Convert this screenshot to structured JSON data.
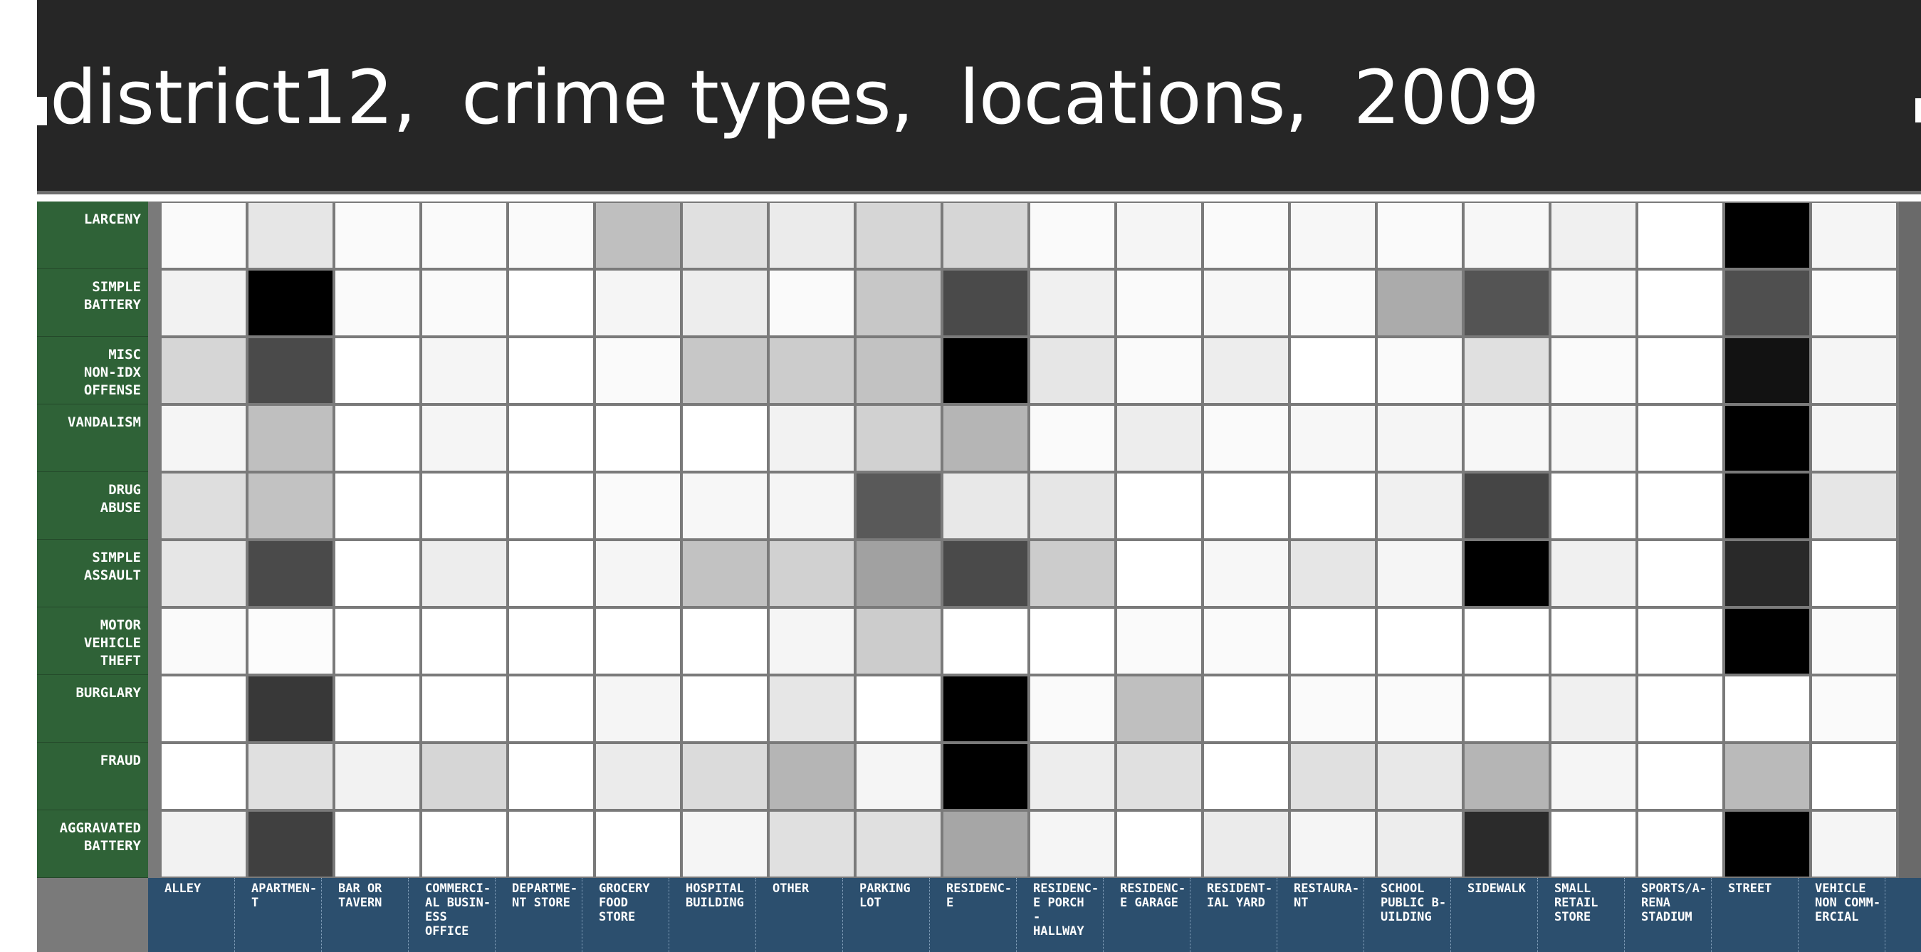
{
  "title": "district12,  crime types,  locations,  2009",
  "colors": {
    "header_bg": "#262626",
    "row_label_bg": "#2f6237",
    "col_label_bg": "#2c4f6e",
    "grid_line": "#7a7a7a",
    "scale_low": "#ffffff",
    "scale_high": "#000000"
  },
  "chart_data": {
    "type": "heatmap",
    "title": "district12,  crime types,  locations,  2009",
    "legend": "none",
    "grid": true,
    "rows": [
      "LARCENY",
      "SIMPLE BATTERY",
      "MISC NON-IDX OFFENSE",
      "VANDALISM",
      "DRUG ABUSE",
      "SIMPLE ASSAULT",
      "MOTOR VEHICLE THEFT",
      "BURGLARY",
      "FRAUD",
      "AGGRAVATED BATTERY"
    ],
    "row_label_lines": [
      [
        "LARCENY"
      ],
      [
        "SIMPLE",
        "BATTERY"
      ],
      [
        "MISC",
        "NON-IDX",
        "OFFENSE"
      ],
      [
        "VANDALISM"
      ],
      [
        "DRUG",
        "ABUSE"
      ],
      [
        "SIMPLE",
        "ASSAULT"
      ],
      [
        "MOTOR",
        "VEHICLE",
        "THEFT"
      ],
      [
        "BURGLARY"
      ],
      [
        "FRAUD"
      ],
      [
        "AGGRAVATED",
        "BATTERY"
      ]
    ],
    "columns": [
      "ALLEY",
      "APARTMENT",
      "BAR OR TAVERN",
      "COMMERCIAL BUSINESS OFFICE",
      "DEPARTMENT STORE",
      "GROCERY FOOD STORE",
      "HOSPITAL BUILDING",
      "OTHER",
      "PARKING LOT",
      "RESIDENCE",
      "RESIDENCE PORCH - HALLWAY",
      "RESIDENCE GARAGE",
      "RESIDENTIAL YARD",
      "RESTAURANT",
      "SCHOOL PUBLIC BUILDING",
      "SIDEWALK",
      "SMALL RETAIL STORE",
      "SPORTS/ARENA STADIUM",
      "STREET",
      "VEHICLE NON COMMERCIAL"
    ],
    "column_label_lines": [
      [
        "ALLEY"
      ],
      [
        "APARTMEN-",
        "T"
      ],
      [
        "BAR OR",
        "TAVERN"
      ],
      [
        "COMMERCI-",
        "AL BUSIN-",
        "ESS",
        "OFFICE"
      ],
      [
        "DEPARTME-",
        "NT STORE"
      ],
      [
        "GROCERY",
        "FOOD",
        "STORE"
      ],
      [
        "HOSPITAL",
        "BUILDING"
      ],
      [
        "OTHER"
      ],
      [
        "PARKING",
        "LOT"
      ],
      [
        "RESIDENC-",
        "E"
      ],
      [
        "RESIDENC-",
        "E PORCH",
        "-",
        "HALLWAY"
      ],
      [
        "RESIDENC-",
        "E GARAGE"
      ],
      [
        "RESIDENT-",
        "IAL YARD"
      ],
      [
        "RESTAURA-",
        "NT"
      ],
      [
        "SCHOOL",
        "PUBLIC B-",
        "UILDING"
      ],
      [
        "SIDEWALK"
      ],
      [
        "SMALL",
        "RETAIL",
        "STORE"
      ],
      [
        "SPORTS/A-",
        "RENA",
        "STADIUM"
      ],
      [
        "STREET"
      ],
      [
        "VEHICLE",
        "NON COMM-",
        "ERCIAL"
      ]
    ],
    "value_scale": "relative intensity per row, 0 (white) to 1 (black)",
    "values": [
      [
        0.02,
        0.1,
        0.02,
        0.02,
        0.02,
        0.25,
        0.12,
        0.08,
        0.16,
        0.16,
        0.02,
        0.04,
        0.02,
        0.03,
        0.02,
        0.03,
        0.06,
        0.0,
        1.0,
        0.04
      ],
      [
        0.05,
        1.0,
        0.02,
        0.02,
        0.0,
        0.04,
        0.07,
        0.02,
        0.22,
        0.71,
        0.06,
        0.02,
        0.03,
        0.02,
        0.33,
        0.67,
        0.03,
        0.0,
        0.69,
        0.02
      ],
      [
        0.16,
        0.71,
        0.0,
        0.04,
        0.0,
        0.02,
        0.22,
        0.2,
        0.24,
        1.0,
        0.1,
        0.02,
        0.07,
        0.0,
        0.02,
        0.12,
        0.02,
        0.0,
        0.93,
        0.04
      ],
      [
        0.04,
        0.25,
        0.0,
        0.04,
        0.0,
        0.0,
        0.0,
        0.05,
        0.18,
        0.29,
        0.02,
        0.07,
        0.02,
        0.03,
        0.04,
        0.03,
        0.03,
        0.0,
        1.0,
        0.04
      ],
      [
        0.13,
        0.24,
        0.0,
        0.0,
        0.0,
        0.02,
        0.03,
        0.04,
        0.65,
        0.09,
        0.1,
        0.0,
        0.0,
        0.0,
        0.06,
        0.73,
        0.0,
        0.0,
        1.0,
        0.1
      ],
      [
        0.1,
        0.71,
        0.0,
        0.07,
        0.0,
        0.04,
        0.24,
        0.18,
        0.37,
        0.71,
        0.2,
        0.0,
        0.03,
        0.1,
        0.04,
        1.0,
        0.06,
        0.0,
        0.84,
        0.0
      ],
      [
        0.02,
        0.01,
        0.0,
        0.0,
        0.0,
        0.0,
        0.0,
        0.04,
        0.2,
        0.0,
        0.0,
        0.02,
        0.02,
        0.0,
        0.0,
        0.0,
        0.0,
        0.0,
        1.0,
        0.02
      ],
      [
        0.0,
        0.78,
        0.0,
        0.0,
        0.0,
        0.04,
        0.0,
        0.1,
        0.0,
        1.0,
        0.02,
        0.25,
        0.0,
        0.02,
        0.02,
        0.0,
        0.06,
        0.0,
        0.0,
        0.02
      ],
      [
        0.0,
        0.12,
        0.05,
        0.16,
        0.0,
        0.08,
        0.14,
        0.29,
        0.04,
        1.0,
        0.07,
        0.12,
        0.0,
        0.12,
        0.09,
        0.29,
        0.04,
        0.0,
        0.27,
        0.0
      ],
      [
        0.05,
        0.75,
        0.0,
        0.0,
        0.0,
        0.0,
        0.04,
        0.12,
        0.12,
        0.35,
        0.04,
        0.0,
        0.08,
        0.04,
        0.07,
        0.83,
        0.0,
        0.0,
        1.0,
        0.04
      ]
    ]
  }
}
